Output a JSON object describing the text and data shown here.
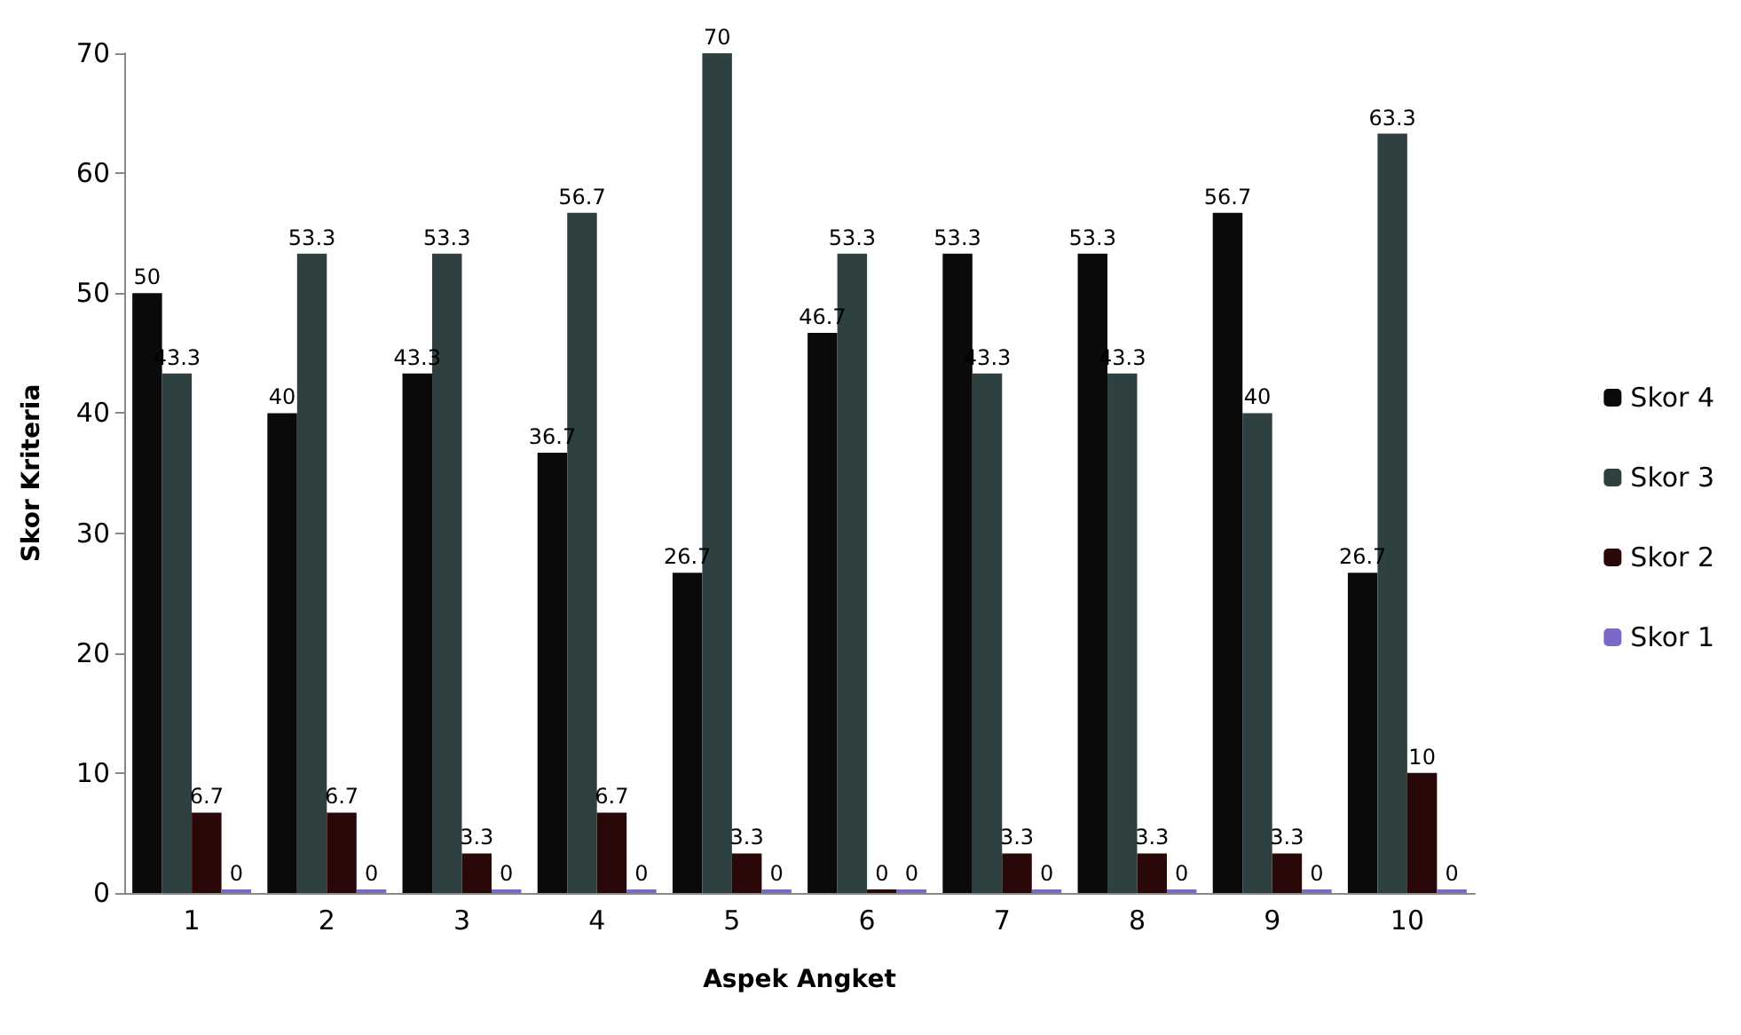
{
  "chart_data": {
    "type": "bar",
    "xlabel": "Aspek Angket",
    "ylabel": "Skor Kriteria",
    "categories": [
      "1",
      "2",
      "3",
      "4",
      "5",
      "6",
      "7",
      "8",
      "9",
      "10"
    ],
    "series": [
      {
        "name": "Skor 4",
        "color": "#0a0a0a",
        "values": [
          50,
          40,
          43.3,
          36.7,
          26.7,
          46.7,
          53.3,
          53.3,
          56.7,
          26.7
        ]
      },
      {
        "name": "Skor 3",
        "color": "#2f4040",
        "values": [
          43.3,
          53.3,
          53.3,
          56.7,
          70,
          53.3,
          43.3,
          43.3,
          40,
          63.3
        ]
      },
      {
        "name": "Skor 2",
        "color": "#2a0808",
        "values": [
          6.7,
          6.7,
          3.3,
          6.7,
          3.3,
          0,
          3.3,
          3.3,
          3.3,
          10
        ]
      },
      {
        "name": "Skor 1",
        "color": "#7b68c8",
        "values": [
          0,
          0,
          0,
          0,
          0,
          0,
          0,
          0,
          0,
          0
        ]
      }
    ],
    "ylim": [
      0,
      70
    ],
    "yticks": [
      0,
      10,
      20,
      30,
      40,
      50,
      60,
      70
    ],
    "data_labels": true,
    "legend": "right",
    "grid": false
  }
}
